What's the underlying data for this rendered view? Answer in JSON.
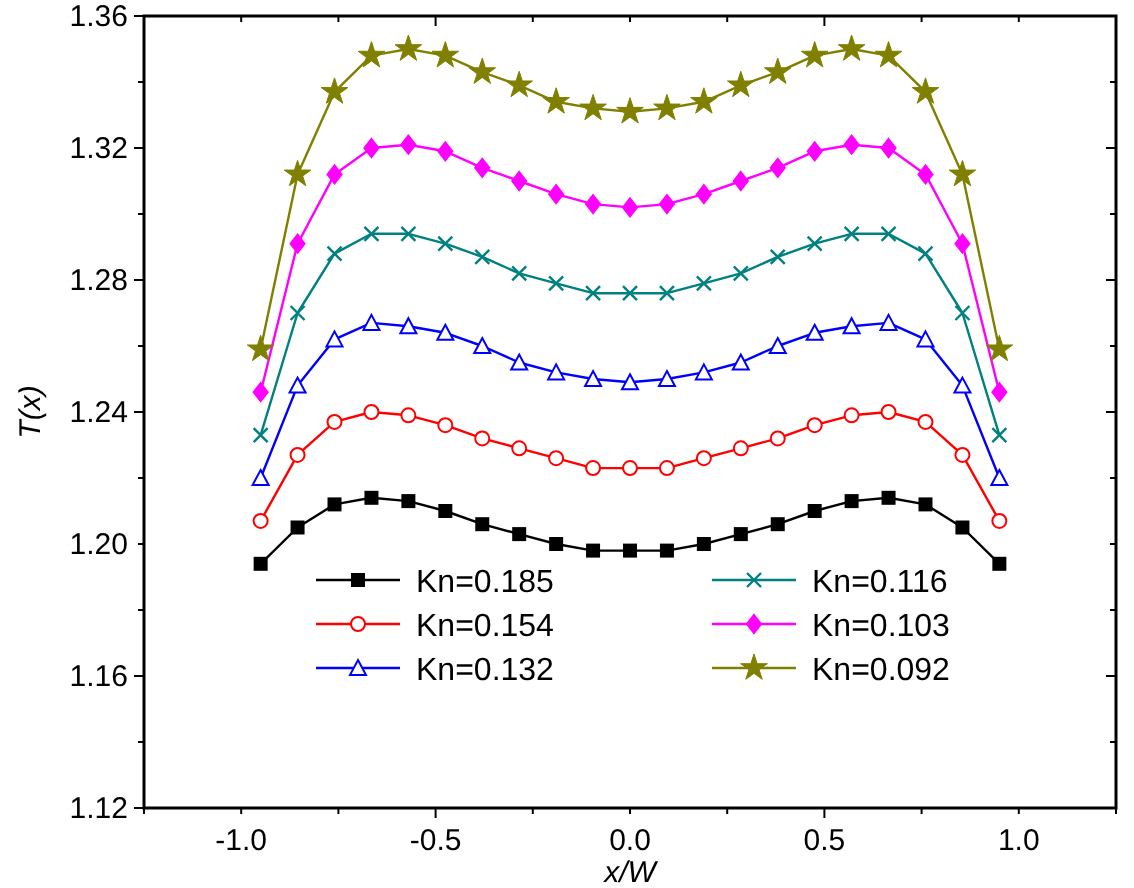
{
  "chart_data": {
    "type": "line",
    "xlabel": "x/W",
    "ylabel": "T(x)",
    "x": [
      -0.95,
      -0.855,
      -0.76,
      -0.665,
      -0.57,
      -0.475,
      -0.38,
      -0.285,
      -0.19,
      -0.095,
      0,
      0.095,
      0.19,
      0.285,
      0.38,
      0.475,
      0.57,
      0.665,
      0.76,
      0.855,
      0.95
    ],
    "xlim": [
      -1.25,
      1.25
    ],
    "xticks": [
      {
        "value": -1.25,
        "label": null
      },
      {
        "value": -1,
        "label": "-1.0"
      },
      {
        "value": -0.75,
        "label": null
      },
      -0.5,
      {
        "value": -0.25,
        "label": null
      },
      {
        "value": 0,
        "label": "0.0"
      },
      {
        "value": 0.25,
        "label": null
      },
      0.5,
      {
        "value": 0.75,
        "label": null
      },
      {
        "value": 1,
        "label": "1.0"
      },
      {
        "value": 1.25,
        "label": null
      }
    ],
    "ylim": [
      1.12,
      1.36
    ],
    "yticks": [
      1.12,
      {
        "value": 1.14,
        "label": null
      },
      1.16,
      {
        "value": 1.18,
        "label": null
      },
      {
        "value": 1.2,
        "label": "1.20"
      },
      {
        "value": 1.22,
        "label": null
      },
      1.24,
      {
        "value": 1.26,
        "label": null
      },
      1.28,
      {
        "value": 1.3,
        "label": null
      },
      1.32,
      {
        "value": 1.34,
        "label": null
      },
      1.36
    ],
    "grid": false,
    "legend": "bottom",
    "line_style": "solid",
    "series": [
      {
        "name": "Kn=0.185",
        "color": "#000000",
        "marker": "square",
        "values": [
          1.194,
          1.205,
          1.212,
          1.214,
          1.213,
          1.21,
          1.206,
          1.203,
          1.2,
          1.198,
          1.198,
          1.198,
          1.2,
          1.203,
          1.206,
          1.21,
          1.213,
          1.214,
          1.212,
          1.205,
          1.194
        ]
      },
      {
        "name": "Kn=0.154",
        "color": "#ff0000",
        "marker": "circle",
        "values": [
          1.207,
          1.227,
          1.237,
          1.24,
          1.239,
          1.236,
          1.232,
          1.229,
          1.226,
          1.223,
          1.223,
          1.223,
          1.226,
          1.229,
          1.232,
          1.236,
          1.239,
          1.24,
          1.237,
          1.227,
          1.207
        ]
      },
      {
        "name": "Kn=0.132",
        "color": "#0000ff",
        "marker": "triangle",
        "values": [
          1.22,
          1.248,
          1.262,
          1.267,
          1.266,
          1.264,
          1.26,
          1.255,
          1.252,
          1.25,
          1.249,
          1.25,
          1.252,
          1.255,
          1.26,
          1.264,
          1.266,
          1.267,
          1.262,
          1.248,
          1.22
        ]
      },
      {
        "name": "Kn=0.116",
        "color": "#008080",
        "marker": "cross",
        "values": [
          1.233,
          1.27,
          1.288,
          1.294,
          1.294,
          1.291,
          1.287,
          1.282,
          1.279,
          1.276,
          1.276,
          1.276,
          1.279,
          1.282,
          1.287,
          1.291,
          1.294,
          1.294,
          1.288,
          1.27,
          1.233
        ]
      },
      {
        "name": "Kn=0.103",
        "color": "#ff00ff",
        "marker": "diamond",
        "values": [
          1.246,
          1.291,
          1.312,
          1.32,
          1.321,
          1.319,
          1.314,
          1.31,
          1.306,
          1.303,
          1.302,
          1.303,
          1.306,
          1.31,
          1.314,
          1.319,
          1.321,
          1.32,
          1.312,
          1.291,
          1.246
        ]
      },
      {
        "name": "Kn=0.092",
        "color": "#808000",
        "marker": "star",
        "values": [
          1.259,
          1.312,
          1.337,
          1.348,
          1.35,
          1.348,
          1.343,
          1.339,
          1.334,
          1.332,
          1.331,
          1.332,
          1.334,
          1.339,
          1.343,
          1.348,
          1.35,
          1.348,
          1.337,
          1.312,
          1.259
        ]
      }
    ]
  }
}
